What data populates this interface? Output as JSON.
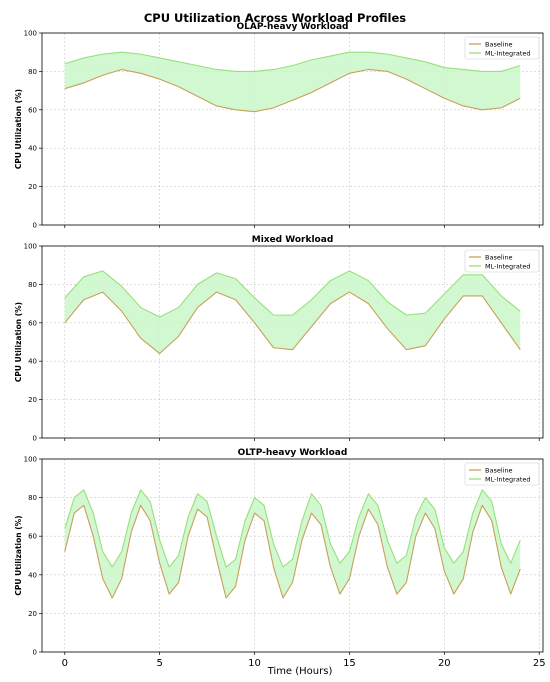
{
  "figure": {
    "title": "CPU Utilization Across Workload Profiles",
    "xlabel": "Time (Hours)"
  },
  "colors": {
    "baseline": "#c8a05a",
    "ml_integrated": "#98e07a",
    "fill": "#c9f7c9",
    "grid": "#c8c8c8",
    "axis": "#000000"
  },
  "chart_data": [
    {
      "type": "area",
      "title": "OLAP-heavy Workload",
      "ylabel": "CPU Utilization (%)",
      "xlim": [
        -1.2,
        25.2
      ],
      "ylim": [
        0,
        100
      ],
      "yticks": [
        0,
        20,
        40,
        60,
        80,
        100
      ],
      "xticks": [
        0,
        5,
        10,
        15,
        20,
        25
      ],
      "grid": true,
      "legend": "top-right",
      "x": [
        0,
        1,
        2,
        3,
        4,
        5,
        6,
        7,
        8,
        9,
        10,
        11,
        12,
        13,
        14,
        15,
        16,
        17,
        18,
        19,
        20,
        21,
        22,
        23,
        24
      ],
      "series": [
        {
          "name": "Baseline",
          "values": [
            71,
            74,
            78,
            81,
            79,
            76,
            72,
            67,
            62,
            60,
            59,
            61,
            65,
            69,
            74,
            79,
            81,
            80,
            76,
            71,
            66,
            62,
            60,
            61,
            66
          ]
        },
        {
          "name": "ML-Integrated",
          "values": [
            84,
            87,
            89,
            90,
            89,
            87,
            85,
            83,
            81,
            80,
            80,
            81,
            83,
            86,
            88,
            90,
            90,
            89,
            87,
            85,
            82,
            81,
            80,
            80,
            83
          ]
        }
      ]
    },
    {
      "type": "area",
      "title": "Mixed Workload",
      "ylabel": "CPU Utilization (%)",
      "xlim": [
        -1.2,
        25.2
      ],
      "ylim": [
        0,
        100
      ],
      "yticks": [
        0,
        20,
        40,
        60,
        80,
        100
      ],
      "xticks": [
        0,
        5,
        10,
        15,
        20,
        25
      ],
      "grid": true,
      "legend": "top-right",
      "x": [
        0,
        1,
        2,
        3,
        4,
        5,
        6,
        7,
        8,
        9,
        10,
        11,
        12,
        13,
        14,
        15,
        16,
        17,
        18,
        19,
        20,
        21,
        22,
        23,
        24
      ],
      "series": [
        {
          "name": "Baseline",
          "values": [
            60,
            72,
            76,
            66,
            52,
            44,
            53,
            68,
            76,
            72,
            60,
            47,
            46,
            58,
            70,
            76,
            70,
            57,
            46,
            48,
            62,
            74,
            74,
            60,
            46
          ]
        },
        {
          "name": "ML-Integrated",
          "values": [
            73,
            84,
            87,
            79,
            68,
            63,
            68,
            80,
            86,
            83,
            73,
            64,
            64,
            72,
            82,
            87,
            82,
            71,
            64,
            65,
            75,
            85,
            85,
            74,
            66
          ]
        }
      ]
    },
    {
      "type": "area",
      "title": "OLTP-heavy Workload",
      "ylabel": "CPU Utilization (%)",
      "xlim": [
        -1.2,
        25.2
      ],
      "ylim": [
        0,
        100
      ],
      "yticks": [
        0,
        20,
        40,
        60,
        80,
        100
      ],
      "xticks": [
        0,
        5,
        10,
        15,
        20,
        25
      ],
      "grid": true,
      "legend": "top-right",
      "x": [
        0,
        0.5,
        1,
        1.5,
        2,
        2.5,
        3,
        3.5,
        4,
        4.5,
        5,
        5.5,
        6,
        6.5,
        7,
        7.5,
        8,
        8.5,
        9,
        9.5,
        10,
        10.5,
        11,
        11.5,
        12,
        12.5,
        13,
        13.5,
        14,
        14.5,
        15,
        15.5,
        16,
        16.5,
        17,
        17.5,
        18,
        18.5,
        19,
        19.5,
        20,
        20.5,
        21,
        21.5,
        22,
        22.5,
        23,
        23.5,
        24
      ],
      "series": [
        {
          "name": "Baseline",
          "values": [
            52,
            72,
            76,
            60,
            38,
            28,
            38,
            62,
            76,
            68,
            46,
            30,
            36,
            60,
            74,
            70,
            48,
            28,
            34,
            58,
            72,
            68,
            44,
            28,
            36,
            58,
            72,
            66,
            44,
            30,
            38,
            60,
            74,
            66,
            44,
            30,
            36,
            60,
            72,
            64,
            42,
            30,
            38,
            62,
            76,
            68,
            44,
            30,
            43
          ]
        },
        {
          "name": "ML-Integrated",
          "values": [
            64,
            80,
            84,
            72,
            52,
            44,
            52,
            72,
            84,
            78,
            58,
            44,
            50,
            70,
            82,
            78,
            60,
            44,
            48,
            68,
            80,
            76,
            56,
            44,
            48,
            68,
            82,
            76,
            56,
            46,
            52,
            70,
            82,
            76,
            58,
            46,
            50,
            70,
            80,
            74,
            54,
            46,
            52,
            72,
            84,
            78,
            56,
            46,
            58
          ]
        }
      ]
    }
  ]
}
